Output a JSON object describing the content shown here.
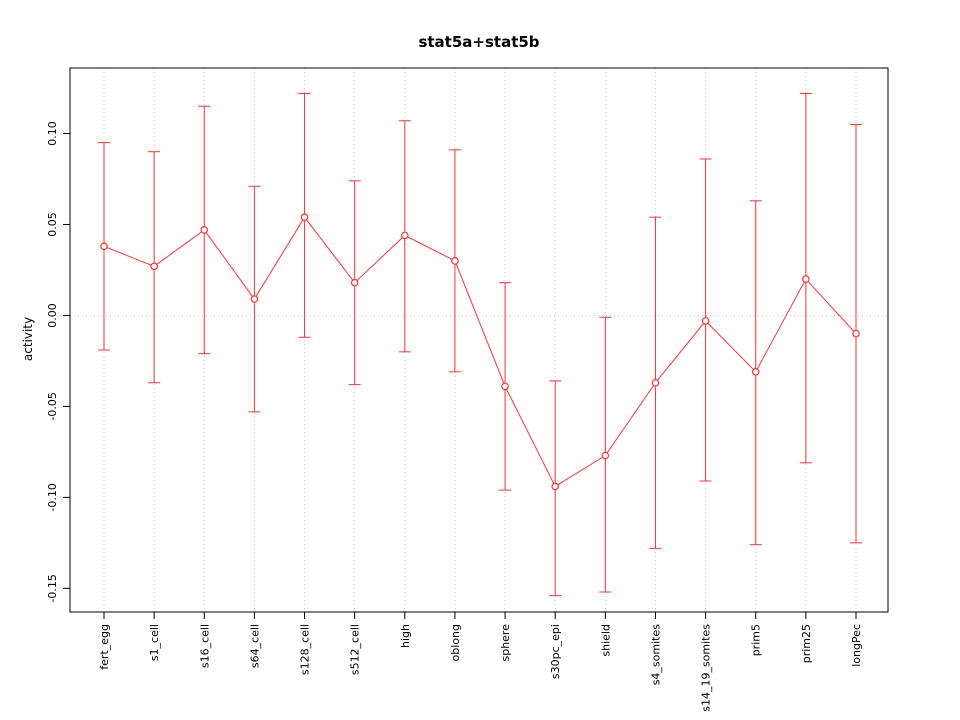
{
  "chart_data": {
    "type": "line",
    "title": "stat5a+stat5b",
    "ylabel": "activity",
    "xlabel": "",
    "categories": [
      "fert_egg",
      "s1_cell",
      "s16_cell",
      "s64_cell",
      "s128_cell",
      "s512_cell",
      "high",
      "oblong",
      "sphere",
      "s30pc_epi",
      "shield",
      "s4_somites",
      "s14_19_somites",
      "prim5",
      "prim25",
      "longPec"
    ],
    "series": [
      {
        "name": "activity",
        "values": [
          0.038,
          0.027,
          0.047,
          0.009,
          0.054,
          0.018,
          0.044,
          0.03,
          -0.039,
          -0.094,
          -0.077,
          -0.037,
          -0.003,
          -0.031,
          0.02,
          -0.01
        ],
        "upper": [
          0.095,
          0.09,
          0.115,
          0.071,
          0.122,
          0.074,
          0.107,
          0.091,
          0.018,
          -0.036,
          -0.001,
          0.054,
          0.086,
          0.063,
          0.122,
          0.105
        ],
        "lower": [
          -0.019,
          -0.037,
          -0.021,
          -0.053,
          -0.012,
          -0.038,
          -0.02,
          -0.031,
          -0.096,
          -0.154,
          -0.152,
          -0.128,
          -0.091,
          -0.126,
          -0.081,
          -0.125
        ]
      }
    ],
    "ytick_values": [
      -0.15,
      -0.1,
      -0.05,
      0.0,
      0.05,
      0.1
    ],
    "ytick_labels": [
      "-0.15",
      "-0.10",
      "-0.05",
      "0.00",
      "0.05",
      "0.10"
    ],
    "ylim": [
      -0.163,
      0.136
    ],
    "legend_position": "none",
    "grid": "dotted vertical line at each category plus dotted horizontal line at y=0",
    "color": "#ff3333",
    "grid_color": "#c8c8c8",
    "axis_color": "#000000",
    "point_fill": "#ffffff"
  }
}
